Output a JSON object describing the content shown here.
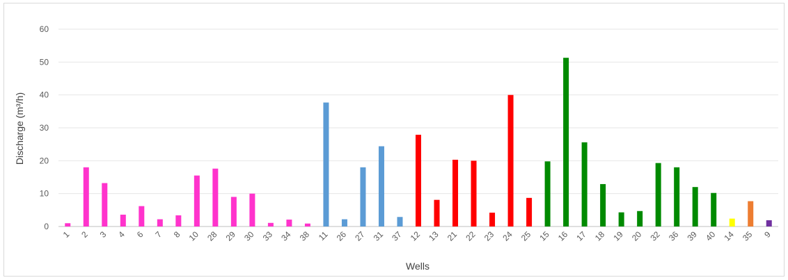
{
  "chart_data": {
    "type": "bar",
    "xlabel": "Wells",
    "ylabel": "Discharge (m³/h)",
    "ylim": [
      0,
      60
    ],
    "yticks": [
      0,
      10,
      20,
      30,
      40,
      50,
      60
    ],
    "grid": true,
    "legend": "none",
    "categories": [
      "1",
      "2",
      "3",
      "4",
      "6",
      "7",
      "8",
      "10",
      "28",
      "29",
      "30",
      "33",
      "34",
      "38",
      "11",
      "26",
      "27",
      "31",
      "37",
      "12",
      "13",
      "21",
      "22",
      "23",
      "24",
      "25",
      "15",
      "16",
      "17",
      "18",
      "19",
      "20",
      "32",
      "36",
      "39",
      "40",
      "14",
      "35",
      "9"
    ],
    "values": [
      1,
      18,
      13.2,
      3.6,
      6.2,
      2.2,
      3.4,
      15.5,
      17.6,
      9,
      10,
      1.1,
      2.1,
      0.9,
      37.7,
      2.2,
      18,
      24.4,
      2.9,
      27.9,
      8.1,
      20.3,
      20,
      4.2,
      40,
      8.7,
      19.8,
      51.3,
      25.6,
      12.9,
      4.3,
      4.7,
      19.3,
      18,
      12,
      10.2,
      2.4,
      7.7,
      1.9
    ],
    "colors": [
      "#ff33cc",
      "#ff33cc",
      "#ff33cc",
      "#ff33cc",
      "#ff33cc",
      "#ff33cc",
      "#ff33cc",
      "#ff33cc",
      "#ff33cc",
      "#ff33cc",
      "#ff33cc",
      "#ff33cc",
      "#ff33cc",
      "#ff33cc",
      "#5b9bd5",
      "#5b9bd5",
      "#5b9bd5",
      "#5b9bd5",
      "#5b9bd5",
      "#ff0000",
      "#ff0000",
      "#ff0000",
      "#ff0000",
      "#ff0000",
      "#ff0000",
      "#ff0000",
      "#008a00",
      "#008a00",
      "#008a00",
      "#008a00",
      "#008a00",
      "#008a00",
      "#008a00",
      "#008a00",
      "#008a00",
      "#008a00",
      "#ffff00",
      "#ed7d31",
      "#7030a0"
    ]
  }
}
